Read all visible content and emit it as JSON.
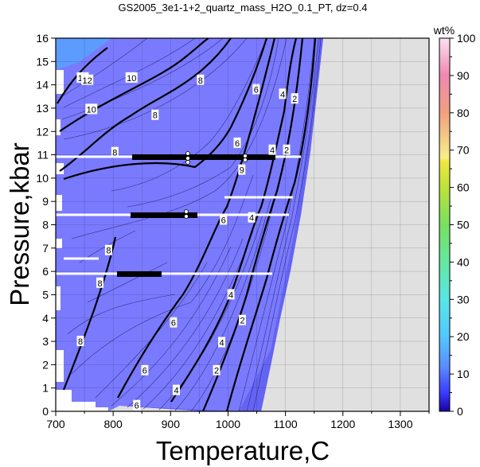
{
  "chart_data": {
    "type": "heatmap",
    "title": "GS2005_3e1-1+2_quartz_mass_H2O_0.1_PT, dz=0.4",
    "xlabel": "Temperature,C",
    "ylabel": "Pressure,kbar",
    "xlim": [
      700,
      1350
    ],
    "ylim": [
      0,
      16
    ],
    "x_ticks": [
      700,
      800,
      900,
      1000,
      1100,
      1200,
      1300
    ],
    "y_ticks": [
      0,
      1,
      2,
      3,
      4,
      5,
      6,
      7,
      8,
      9,
      10,
      11,
      12,
      13,
      14,
      15,
      16
    ],
    "grid": true,
    "colorbar": {
      "label": "wt%",
      "min": 0,
      "max": 100,
      "ticks": [
        0,
        10,
        20,
        30,
        40,
        50,
        60,
        70,
        80,
        90,
        100
      ]
    },
    "contour_labels": [
      {
        "text": "14",
        "t": 747,
        "p": 14.3
      },
      {
        "text": "12",
        "t": 755,
        "p": 14.2
      },
      {
        "text": "10",
        "t": 762,
        "p": 12.95
      },
      {
        "text": "10",
        "t": 832,
        "p": 14.3
      },
      {
        "text": "8",
        "t": 952,
        "p": 14.2
      },
      {
        "text": "8",
        "t": 873,
        "p": 12.7
      },
      {
        "text": "8",
        "t": 803,
        "p": 11.1
      },
      {
        "text": "6",
        "t": 1049,
        "p": 13.8
      },
      {
        "text": "6",
        "t": 1016,
        "p": 11.5
      },
      {
        "text": "4",
        "t": 1095,
        "p": 13.6
      },
      {
        "text": "4",
        "t": 1077,
        "p": 11.2
      },
      {
        "text": "2",
        "t": 1116,
        "p": 13.4
      },
      {
        "text": "2",
        "t": 1102,
        "p": 11.2
      },
      {
        "text": "9",
        "t": 1024,
        "p": 10.35
      },
      {
        "text": "6",
        "t": 992,
        "p": 8.2
      },
      {
        "text": "4",
        "t": 1041,
        "p": 8.3
      },
      {
        "text": "8",
        "t": 792,
        "p": 6.9
      },
      {
        "text": "8",
        "t": 777,
        "p": 5.5
      },
      {
        "text": "8",
        "t": 743,
        "p": 3.0
      },
      {
        "text": "6",
        "t": 905,
        "p": 3.8
      },
      {
        "text": "6",
        "t": 855,
        "p": 1.75
      },
      {
        "text": "6",
        "t": 841,
        "p": 0.25
      },
      {
        "text": "4",
        "t": 1005,
        "p": 5.0
      },
      {
        "text": "4",
        "t": 989,
        "p": 2.95
      },
      {
        "text": "4",
        "t": 910,
        "p": 0.9
      },
      {
        "text": "2",
        "t": 1025,
        "p": 3.9
      },
      {
        "text": "2",
        "t": 980,
        "p": 1.75
      }
    ]
  }
}
